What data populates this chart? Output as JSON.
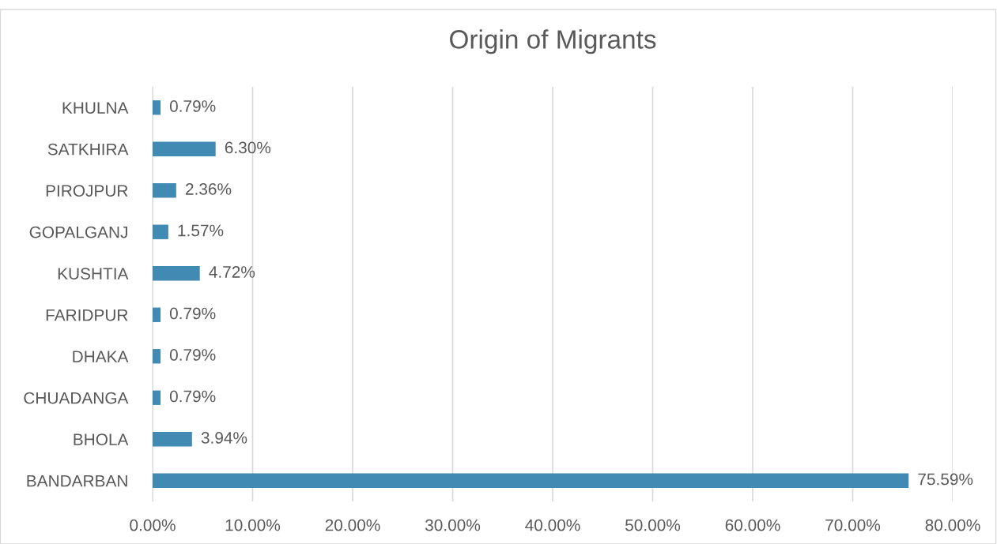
{
  "chart_data": {
    "type": "bar",
    "orientation": "horizontal",
    "title": "Origin of Migrants",
    "categories": [
      "KHULNA",
      "SATKHIRA",
      "PIROJPUR",
      "GOPALGANJ",
      "KUSHTIA",
      "FARIDPUR",
      "DHAKA",
      "CHUADANGA",
      "BHOLA",
      "BANDARBAN"
    ],
    "values": [
      0.79,
      6.3,
      2.36,
      1.57,
      4.72,
      0.79,
      0.79,
      0.79,
      3.94,
      75.59
    ],
    "value_labels": [
      "0.79%",
      "6.30%",
      "2.36%",
      "1.57%",
      "4.72%",
      "0.79%",
      "0.79%",
      "0.79%",
      "3.94%",
      "75.59%"
    ],
    "color": "#418ab3",
    "xlim": [
      0,
      80
    ],
    "xticks": [
      {
        "value": 0,
        "label": "0.00%"
      },
      {
        "value": 10,
        "label": "10.00%"
      },
      {
        "value": 20,
        "label": "20.00%"
      },
      {
        "value": 30,
        "label": "30.00%"
      },
      {
        "value": 40,
        "label": "40.00%"
      },
      {
        "value": 50,
        "label": "50.00%"
      },
      {
        "value": 60,
        "label": "60.00%"
      },
      {
        "value": 70,
        "label": "70.00%"
      },
      {
        "value": 80,
        "label": "80.00%"
      }
    ],
    "grid": "x",
    "legend": false
  }
}
